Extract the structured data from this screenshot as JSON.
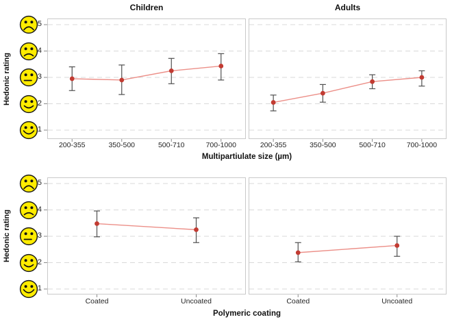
{
  "chart_data": {
    "type": "line",
    "description": "Interval plot of hedonic rating (means with error bars) in four panels",
    "grid": "horizontal-dashed",
    "y_axis": {
      "label": "Hedonic rating",
      "min": 1,
      "max": 5,
      "ticks": [
        5,
        4,
        3,
        2,
        1
      ],
      "smiley_scale": [
        {
          "value": 5,
          "mood": "very-sad"
        },
        {
          "value": 4,
          "mood": "sad"
        },
        {
          "value": 3,
          "mood": "neutral"
        },
        {
          "value": 2,
          "mood": "happy"
        },
        {
          "value": 1,
          "mood": "very-happy"
        }
      ]
    },
    "rows": [
      {
        "xlabel": "Multipartiulate size (µm)",
        "categories": [
          "200-355",
          "350-500",
          "500-710",
          "700-1000"
        ],
        "panels": [
          {
            "title": "Children",
            "series": {
              "means": [
                2.95,
                2.9,
                3.25,
                3.43
              ],
              "ci_low": [
                2.5,
                2.35,
                2.76,
                2.9
              ],
              "ci_high": [
                3.4,
                3.47,
                3.72,
                3.9
              ]
            }
          },
          {
            "title": "Adults",
            "series": {
              "means": [
                2.05,
                2.4,
                2.84,
                3.0
              ],
              "ci_low": [
                1.73,
                2.06,
                2.57,
                2.67
              ],
              "ci_high": [
                2.33,
                2.73,
                3.1,
                3.25
              ]
            }
          }
        ]
      },
      {
        "xlabel": "Polymeric coating",
        "categories": [
          "Coated",
          "Uncoated"
        ],
        "panels": [
          {
            "title": "",
            "series": {
              "means": [
                3.48,
                3.25
              ],
              "ci_low": [
                2.98,
                2.76
              ],
              "ci_high": [
                3.96,
                3.7
              ]
            }
          },
          {
            "title": "",
            "series": {
              "means": [
                2.38,
                2.65
              ],
              "ci_low": [
                2.03,
                2.24
              ],
              "ci_high": [
                2.76,
                3.0
              ]
            }
          }
        ]
      }
    ],
    "colors": {
      "point": "#c23b32",
      "line": "#ec8f88",
      "error_bar": "#4f4f4f",
      "gridline": "#d8d8d8",
      "panel_border": "#c9c9c9",
      "tick_mark": "#8a8a8a",
      "smiley_fill": "#ffec00",
      "smiley_stroke": "#1a1a1a",
      "text": "#111111"
    }
  }
}
